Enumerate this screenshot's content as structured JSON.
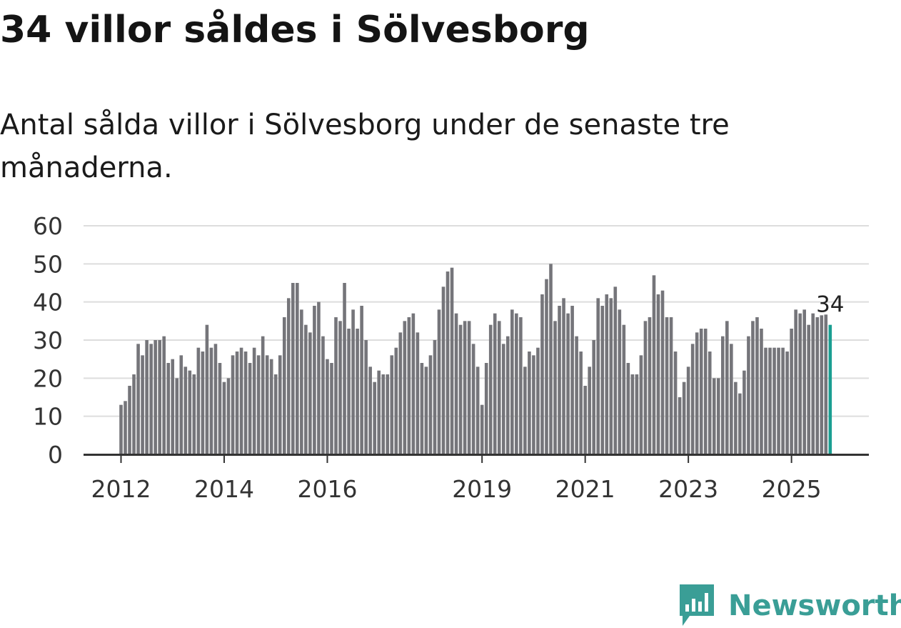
{
  "title": "34 villor såldes i Sölvesborg",
  "subtitle": "Antal sålda villor i Sölvesborg under de senaste tre månaderna.",
  "brand": {
    "name": "Newsworthy",
    "icon": "newsworthy-logo-icon",
    "color": "#3a9e96"
  },
  "colors": {
    "bar": "#75757a",
    "highlight": "#1a9e91",
    "grid": "#dddddd",
    "axis": "#333333"
  },
  "chart_data": {
    "type": "bar",
    "title": "34 villor såldes i Sölvesborg",
    "xlabel": "",
    "ylabel": "",
    "ylim": [
      0,
      60
    ],
    "yticks": [
      0,
      10,
      20,
      30,
      40,
      50,
      60
    ],
    "grid": true,
    "start_year": 2012,
    "start_month": 1,
    "x_ticks": [
      {
        "label": "2012",
        "index": 0
      },
      {
        "label": "2014",
        "index": 24
      },
      {
        "label": "2016",
        "index": 48
      },
      {
        "label": "2019",
        "index": 84
      },
      {
        "label": "2021",
        "index": 108
      },
      {
        "label": "2023",
        "index": 132
      },
      {
        "label": "2025",
        "index": 156
      }
    ],
    "values": [
      13,
      14,
      18,
      21,
      29,
      26,
      30,
      29,
      30,
      30,
      31,
      24,
      25,
      20,
      26,
      23,
      22,
      21,
      28,
      27,
      34,
      28,
      29,
      24,
      19,
      20,
      26,
      27,
      28,
      27,
      24,
      28,
      26,
      31,
      26,
      25,
      21,
      26,
      36,
      41,
      45,
      45,
      38,
      34,
      32,
      39,
      40,
      31,
      25,
      24,
      36,
      35,
      45,
      33,
      38,
      33,
      39,
      30,
      23,
      19,
      22,
      21,
      21,
      26,
      28,
      32,
      35,
      36,
      37,
      32,
      24,
      23,
      26,
      30,
      38,
      44,
      48,
      49,
      37,
      34,
      35,
      35,
      29,
      23,
      13,
      24,
      34,
      37,
      35,
      29,
      31,
      38,
      37,
      36,
      23,
      27,
      26,
      28,
      42,
      46,
      50,
      35,
      39,
      41,
      37,
      39,
      31,
      27,
      18,
      23,
      30,
      41,
      39,
      42,
      41,
      44,
      38,
      34,
      24,
      21,
      21,
      26,
      35,
      36,
      47,
      42,
      43,
      36,
      36,
      27,
      15,
      19,
      23,
      29,
      32,
      33,
      33,
      27,
      20,
      20,
      31,
      35,
      29,
      19,
      16,
      22,
      31,
      35,
      36,
      33,
      28,
      28,
      28,
      28,
      28,
      27,
      33,
      38,
      37,
      38,
      34,
      37,
      36,
      36.5,
      36.7,
      34
    ],
    "highlight_label": "34"
  }
}
